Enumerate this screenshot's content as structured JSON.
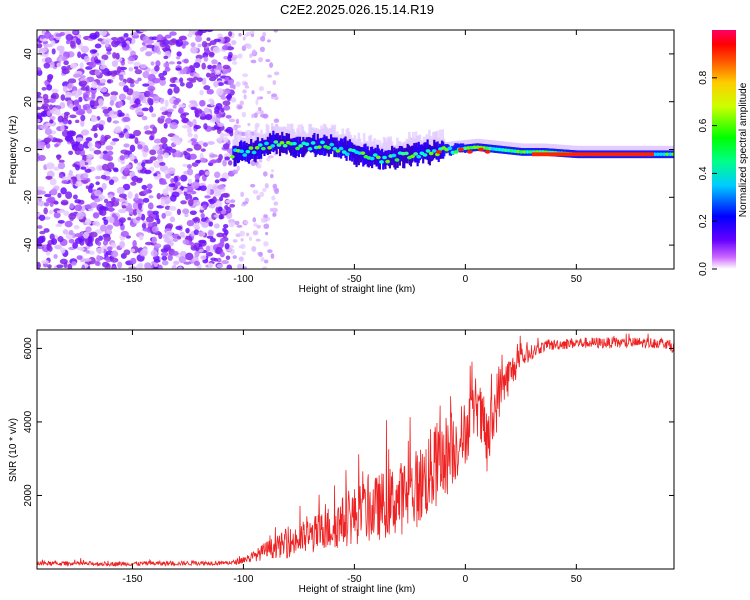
{
  "title": "C2E2.2025.026.15.14.R19",
  "chart_data": [
    {
      "type": "heatmap",
      "xlabel": "Height of straight line (km)",
      "ylabel": "Frequency (Hz)",
      "xlim": [
        -193,
        94
      ],
      "ylim": [
        -50,
        50
      ],
      "xticks": [
        -150,
        -100,
        -50,
        0,
        50
      ],
      "yticks": [
        -40,
        -20,
        0,
        20,
        40
      ],
      "xtick_labels": [
        "-150",
        "-100",
        "-50",
        "0",
        "50"
      ],
      "ytick_labels": [
        "-40",
        "-20",
        "0",
        "20",
        "40"
      ],
      "colorbar": {
        "label": "Normalized spectral amplitude",
        "range": [
          0,
          1
        ],
        "ticks": [
          0.0,
          0.2,
          0.4,
          0.6,
          0.8
        ],
        "tick_labels": [
          "0.0",
          "0.2",
          "0.4",
          "0.6",
          "0.8"
        ]
      },
      "noise_region_x": [
        -193,
        -105
      ],
      "sparse_region_x": [
        -105,
        -85
      ],
      "signal_track": {
        "x": [
          -105,
          -95,
          -85,
          -75,
          -65,
          -55,
          -45,
          -35,
          -25,
          -15,
          -5,
          5,
          15,
          25,
          35,
          50,
          65,
          80,
          94
        ],
        "frequency": [
          -2,
          0,
          3,
          1,
          2,
          0,
          -3,
          -4,
          -2,
          -1,
          0,
          1,
          0,
          -1,
          -1,
          -2,
          -2,
          -2,
          -2
        ]
      }
    },
    {
      "type": "line",
      "xlabel": "Height of straight line (km)",
      "ylabel": "SNR (10 * v/v)",
      "xlim": [
        -193,
        94
      ],
      "ylim": [
        0,
        6500
      ],
      "xticks": [
        -150,
        -100,
        -50,
        0,
        50
      ],
      "yticks": [
        2000,
        4000,
        6000
      ],
      "xtick_labels": [
        "-150",
        "-100",
        "-50",
        "0",
        "50"
      ],
      "ytick_labels": [
        "2000",
        "4000",
        "6000"
      ],
      "series": [
        {
          "name": "SNR",
          "color": "#ee2222",
          "x": [
            -193,
            -180,
            -160,
            -140,
            -120,
            -105,
            -100,
            -95,
            -90,
            -85,
            -80,
            -75,
            -70,
            -65,
            -60,
            -55,
            -50,
            -45,
            -40,
            -35,
            -30,
            -25,
            -20,
            -15,
            -10,
            -5,
            0,
            5,
            10,
            15,
            20,
            25,
            30,
            35,
            40,
            50,
            60,
            70,
            80,
            90,
            94
          ],
          "values": [
            150,
            150,
            140,
            150,
            160,
            170,
            250,
            350,
            500,
            600,
            700,
            800,
            900,
            1000,
            1150,
            1300,
            1450,
            1550,
            1650,
            1800,
            1900,
            2050,
            2300,
            2700,
            3000,
            3300,
            3700,
            4500,
            3400,
            4800,
            5300,
            5700,
            5900,
            6050,
            6100,
            6150,
            6150,
            6150,
            6150,
            6150,
            6000
          ],
          "noise": [
            60,
            60,
            60,
            60,
            60,
            60,
            100,
            150,
            250,
            300,
            400,
            450,
            500,
            550,
            650,
            700,
            800,
            850,
            900,
            950,
            1000,
            1050,
            1100,
            1200,
            1200,
            1000,
            900,
            800,
            1000,
            800,
            500,
            300,
            200,
            150,
            150,
            150,
            150,
            150,
            150,
            150,
            150
          ]
        }
      ]
    }
  ]
}
